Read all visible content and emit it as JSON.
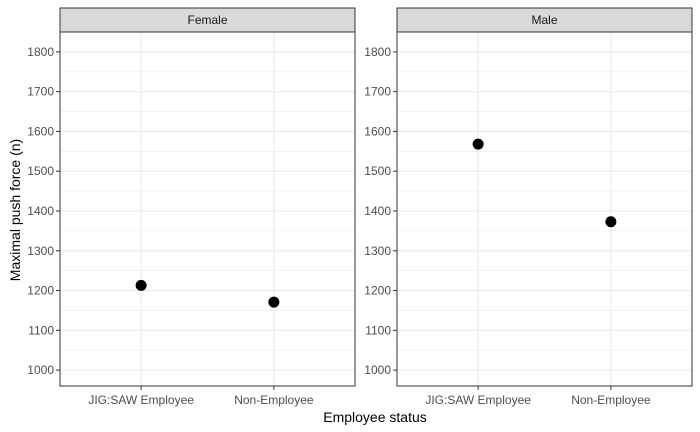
{
  "chart_data": {
    "type": "scatter",
    "xlabel": "Employee status",
    "ylabel": "Maximal push force (n)",
    "categories": [
      "JIG:SAW Employee",
      "Non-Employee"
    ],
    "ylim": [
      960,
      1850
    ],
    "yticks": [
      1000,
      1100,
      1200,
      1300,
      1400,
      1500,
      1600,
      1700,
      1800
    ],
    "grid": true,
    "legend": "none",
    "facets": [
      {
        "label": "Female",
        "values": [
          1213,
          1171
        ]
      },
      {
        "label": "Male",
        "values": [
          1568,
          1373
        ]
      }
    ]
  },
  "colors": {
    "point": "#000000",
    "strip_fill": "#d9d9d9",
    "panel_border": "#333333",
    "grid": "#ebebeb"
  }
}
